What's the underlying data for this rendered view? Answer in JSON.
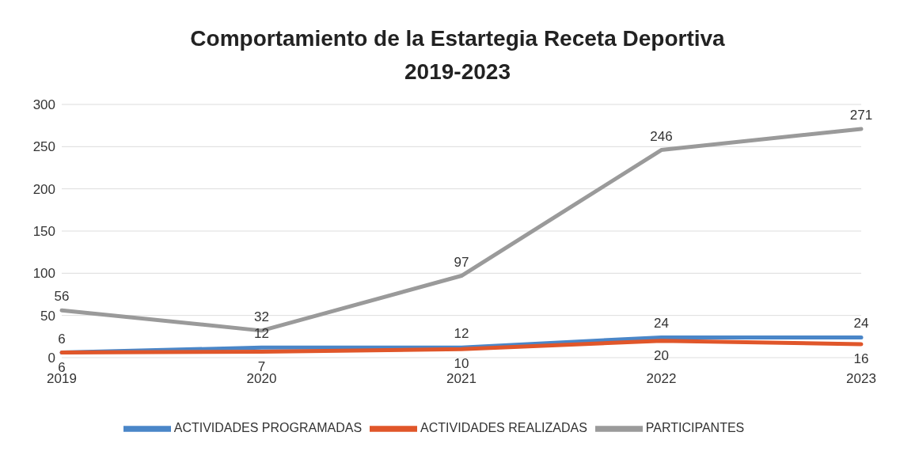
{
  "chart_data": {
    "type": "line",
    "title": "Comportamiento de la Estartegia Receta Deportiva\n2019-2023",
    "categories": [
      "2019",
      "2020",
      "2021",
      "2022",
      "2023"
    ],
    "series": [
      {
        "name": "ACTIVIDADES PROGRAMADAS",
        "color": "#4a86c8",
        "values": [
          6,
          12,
          12,
          24,
          24
        ]
      },
      {
        "name": "ACTIVIDADES REALIZADAS",
        "color": "#e0562a",
        "values": [
          6,
          7,
          10,
          20,
          16
        ]
      },
      {
        "name": "PARTICIPANTES",
        "color": "#9a9a9a",
        "values": [
          56,
          32,
          97,
          246,
          271
        ]
      }
    ],
    "ylim": [
      0,
      300
    ],
    "yticks": [
      0,
      50,
      100,
      150,
      200,
      250,
      300
    ],
    "grid": "y",
    "legend": "bottom",
    "marker": "none",
    "line_style": "solid",
    "data_labels": true
  }
}
